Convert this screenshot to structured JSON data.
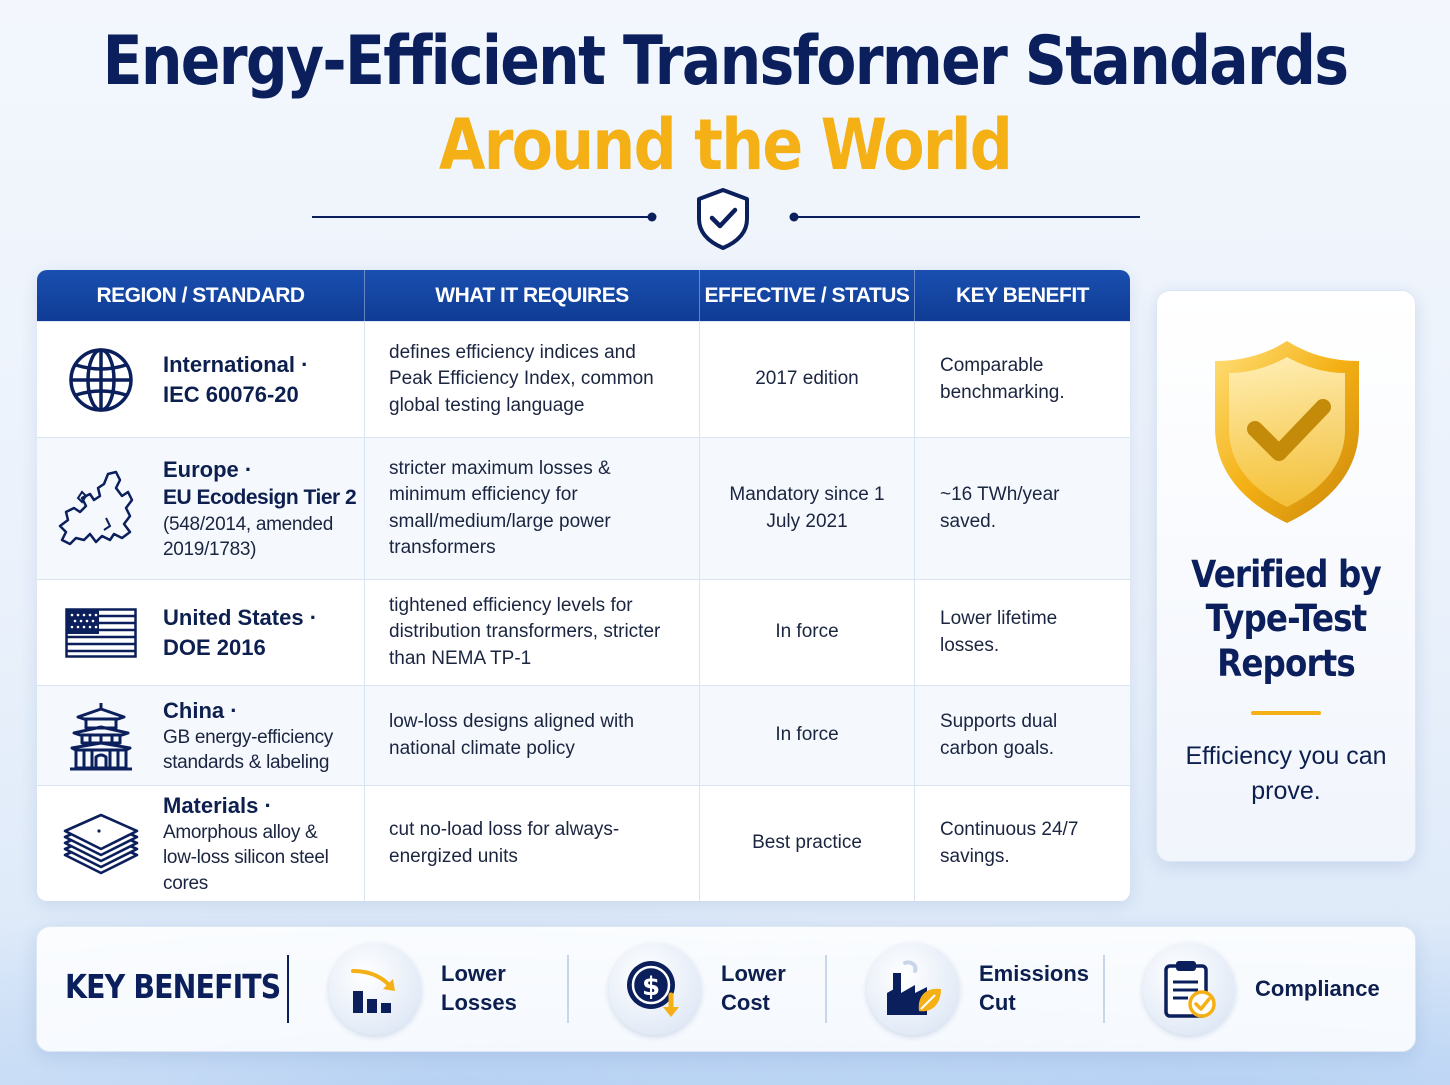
{
  "title": {
    "line1": "Energy-Efficient Transformer Standards",
    "line2": "Around the World"
  },
  "colors": {
    "navy": "#0b1f5c",
    "gold": "#f4b014",
    "header_blue": "#1a4fb0"
  },
  "table": {
    "headers": [
      "REGION / STANDARD",
      "WHAT IT REQUIRES",
      "EFFECTIVE / STATUS",
      "KEY BENEFIT"
    ],
    "rows": [
      {
        "icon": "globe-icon",
        "region": "International ·",
        "sub_bold": "IEC 60076-20",
        "sub": "",
        "requires": "defines efficiency indices and Peak Efficiency Index, common global testing language",
        "status": "2017 edition",
        "benefit": "Comparable benchmarking."
      },
      {
        "icon": "europe-map-icon",
        "region": "Europe ·",
        "sub_bold": "EU Ecodesign Tier 2",
        "sub": "(548/2014, amended 2019/1783)",
        "requires": "stricter maximum losses & minimum efficiency for small/medium/large power transformers",
        "status": "Mandatory since 1 July 2021",
        "benefit": "~16 TWh/year saved."
      },
      {
        "icon": "us-flag-icon",
        "region": "United States ·",
        "sub_bold": "DOE 2016",
        "sub": "",
        "requires": "tightened efficiency levels for distribution transformers, stricter than NEMA TP-1",
        "status": "In force",
        "benefit": "Lower lifetime losses."
      },
      {
        "icon": "pagoda-icon",
        "region": "China ·",
        "sub_bold": "",
        "sub": "GB energy-efficiency standards & labeling",
        "requires": "low-loss designs aligned with national climate policy",
        "status": "In force",
        "benefit": "Supports dual carbon goals."
      },
      {
        "icon": "core-laminations-icon",
        "region": "Materials ·",
        "sub_bold": "",
        "sub": "Amorphous alloy & low-loss silicon steel cores",
        "requires": "cut no-load loss for always-energized units",
        "status": "Best practice",
        "benefit": "Continuous 24/7 savings."
      }
    ]
  },
  "verify": {
    "icon": "gold-shield-check-icon",
    "title": "Verified by Type-Test Reports",
    "subtitle": "Efficiency you can prove."
  },
  "benefits": {
    "label": "KEY BENEFITS",
    "items": [
      {
        "icon": "bar-chart-down-arrow-icon",
        "label": "Lower Losses"
      },
      {
        "icon": "dollar-coin-down-arrow-icon",
        "label": "Lower Cost"
      },
      {
        "icon": "factory-leaf-icon",
        "label": "Emissions Cut"
      },
      {
        "icon": "clipboard-check-icon",
        "label": "Compliance"
      }
    ]
  }
}
